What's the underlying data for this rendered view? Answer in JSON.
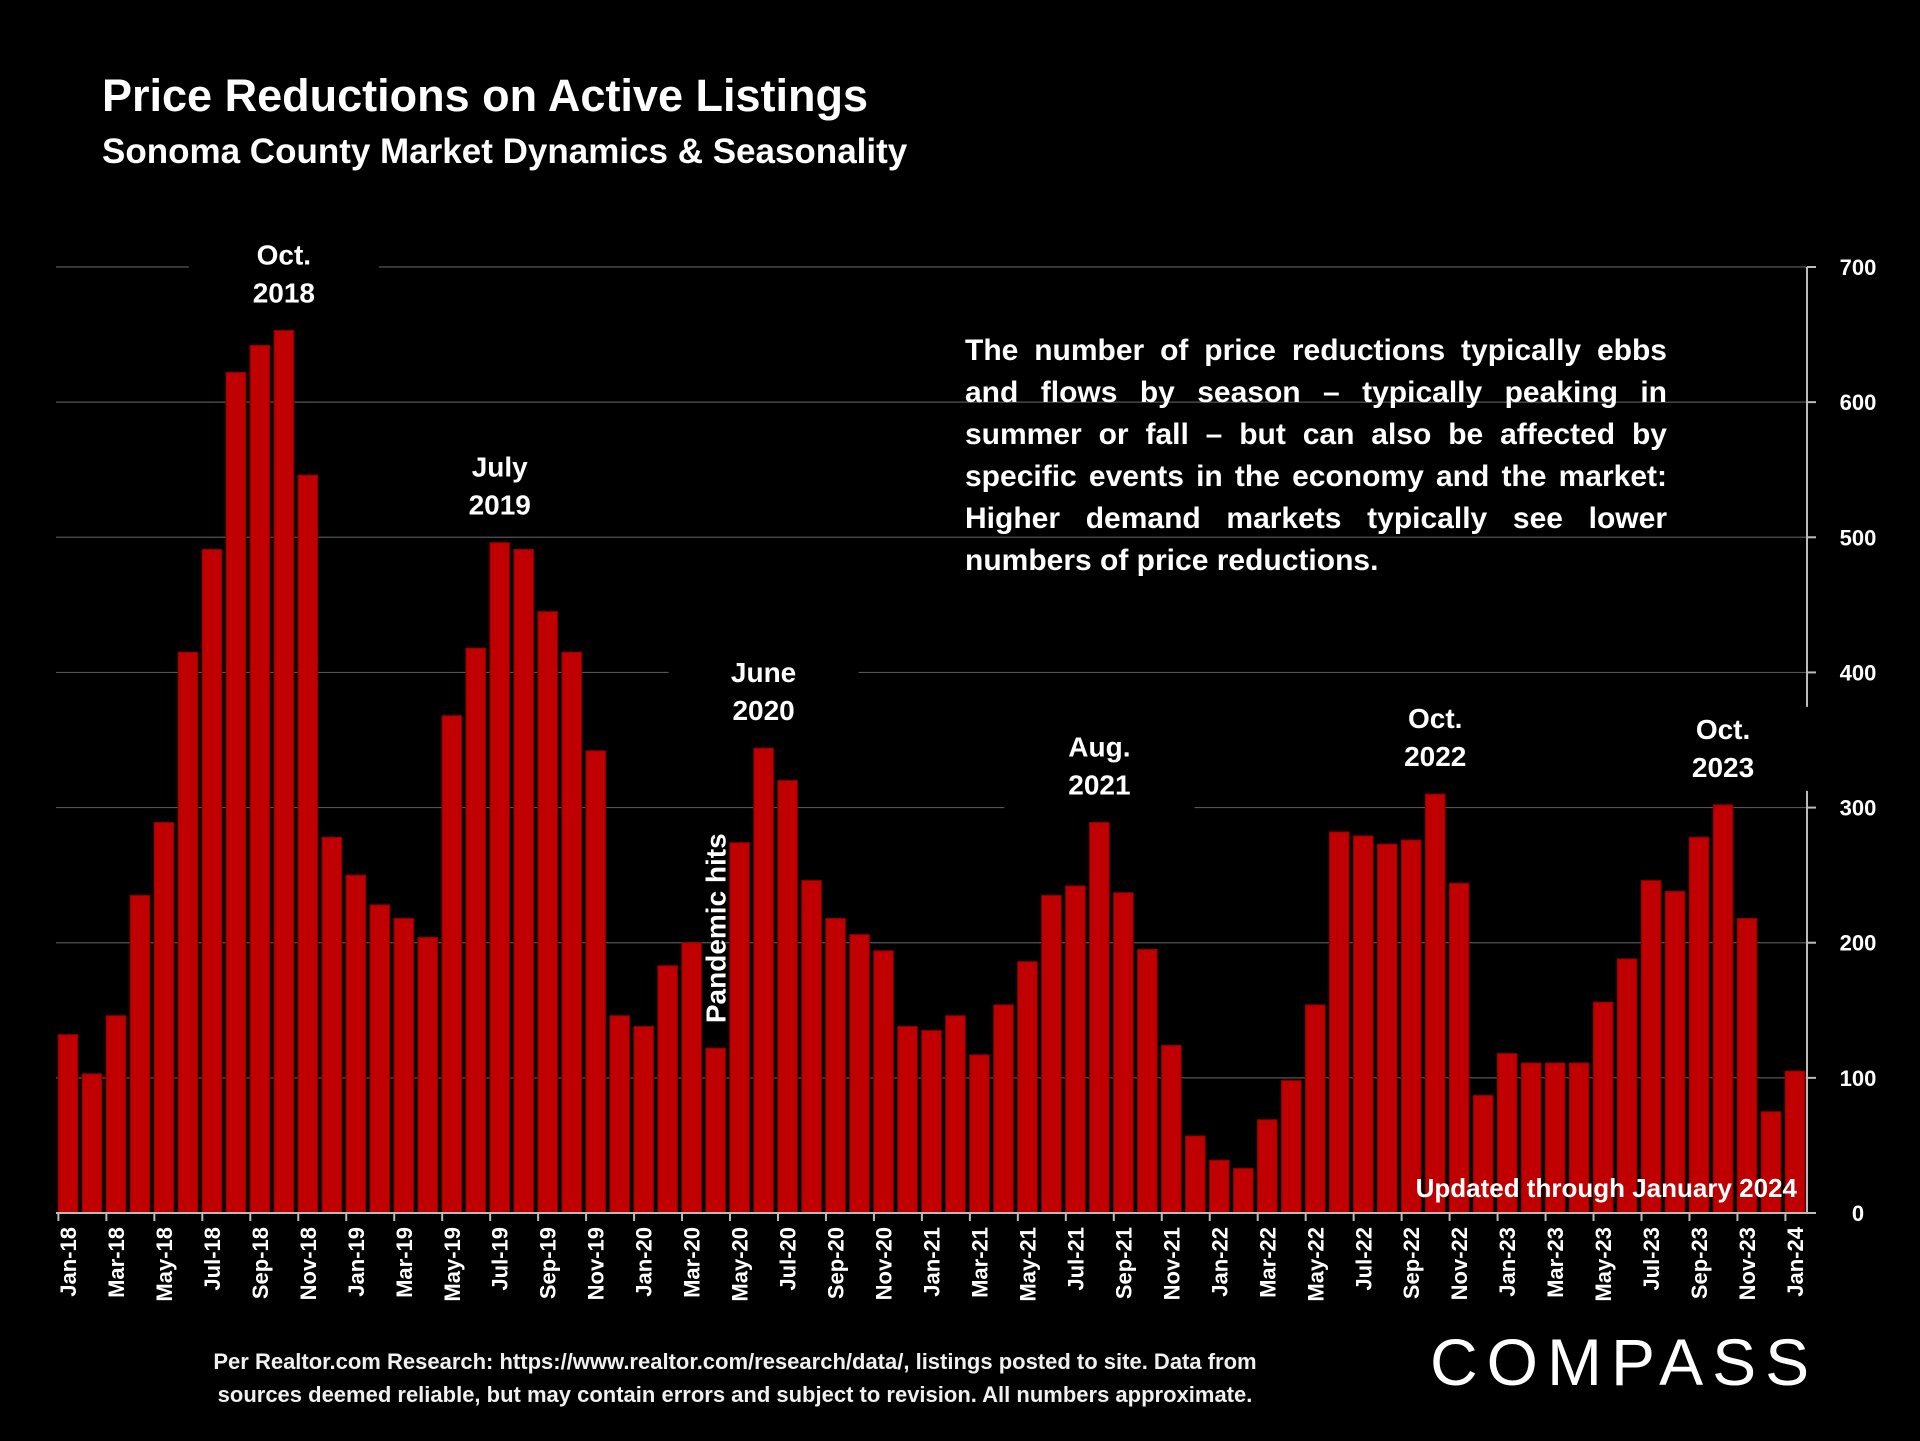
{
  "header": {
    "title": "Price Reductions on Active Listings",
    "subtitle": "Sonoma County Market Dynamics & Seasonality"
  },
  "note": "The number of price reductions typically ebbs and flows by season – typically peaking in summer or fall – but can also be affected by specific events in the economy and the market: Higher demand markets typically see lower numbers of price reductions.",
  "footer": {
    "source_line1": "Per Realtor.com Research:  https://www.realtor.com/research/data/, listings posted to site. Data from",
    "source_line2": "sources deemed reliable, but may contain errors and subject to revision. All numbers approximate.",
    "logo": "COMPASS"
  },
  "colors": {
    "bar": "#c00000",
    "background": "#000000",
    "grid": "#555555"
  },
  "chart_data": {
    "type": "bar",
    "title": "Price Reductions on Active Listings",
    "subtitle": "Sonoma County Market Dynamics & Seasonality",
    "xlabel": "",
    "ylabel": "",
    "ylim": [
      0,
      700
    ],
    "yticks": [
      0,
      100,
      200,
      300,
      400,
      500,
      600,
      700
    ],
    "y_axis_position": "right",
    "grid": true,
    "categories": [
      "Jan-18",
      "Feb-18",
      "Mar-18",
      "Apr-18",
      "May-18",
      "Jun-18",
      "Jul-18",
      "Aug-18",
      "Sep-18",
      "Oct-18",
      "Nov-18",
      "Dec-18",
      "Jan-19",
      "Feb-19",
      "Mar-19",
      "Apr-19",
      "May-19",
      "Jun-19",
      "Jul-19",
      "Aug-19",
      "Sep-19",
      "Oct-19",
      "Nov-19",
      "Dec-19",
      "Jan-20",
      "Feb-20",
      "Mar-20",
      "Apr-20",
      "May-20",
      "Jun-20",
      "Jul-20",
      "Aug-20",
      "Sep-20",
      "Oct-20",
      "Nov-20",
      "Dec-20",
      "Jan-21",
      "Feb-21",
      "Mar-21",
      "Apr-21",
      "May-21",
      "Jun-21",
      "Jul-21",
      "Aug-21",
      "Sep-21",
      "Oct-21",
      "Nov-21",
      "Dec-21",
      "Jan-22",
      "Feb-22",
      "Mar-22",
      "Apr-22",
      "May-22",
      "Jun-22",
      "Jul-22",
      "Aug-22",
      "Sep-22",
      "Oct-22",
      "Nov-22",
      "Dec-22",
      "Jan-23",
      "Feb-23",
      "Mar-23",
      "Apr-23",
      "May-23",
      "Jun-23",
      "Jul-23",
      "Aug-23",
      "Sep-23",
      "Oct-23",
      "Nov-23",
      "Dec-23",
      "Jan-24"
    ],
    "values": [
      132,
      103,
      146,
      235,
      289,
      415,
      491,
      622,
      642,
      653,
      546,
      278,
      250,
      228,
      218,
      204,
      368,
      418,
      496,
      491,
      445,
      415,
      342,
      146,
      138,
      183,
      200,
      122,
      274,
      344,
      320,
      246,
      218,
      206,
      194,
      138,
      135,
      146,
      117,
      154,
      186,
      235,
      242,
      289,
      237,
      195,
      124,
      57,
      39,
      33,
      69,
      98,
      154,
      282,
      279,
      273,
      276,
      310,
      244,
      87,
      118,
      111,
      111,
      111,
      156,
      188,
      246,
      238,
      278,
      302,
      218,
      75,
      105
    ],
    "tick_labels": [
      "Jan-18",
      "Mar-18",
      "May-18",
      "Jul-18",
      "Sep-18",
      "Nov-18",
      "Jan-19",
      "Mar-19",
      "May-19",
      "Jul-19",
      "Sep-19",
      "Nov-19",
      "Jan-20",
      "Mar-20",
      "May-20",
      "Jul-20",
      "Sep-20",
      "Nov-20",
      "Jan-21",
      "Mar-21",
      "May-21",
      "Jul-21",
      "Sep-21",
      "Nov-21",
      "Jan-22",
      "Mar-22",
      "May-22",
      "Jul-22",
      "Sep-22",
      "Nov-22",
      "Jan-23",
      "Mar-23",
      "May-23",
      "Jul-23",
      "Sep-23",
      "Nov-23",
      "Jan-24"
    ],
    "annotations": [
      {
        "category": "Oct-18",
        "lines": [
          "Oct.",
          "2018"
        ]
      },
      {
        "category": "Jul-19",
        "lines": [
          "July",
          "2019"
        ]
      },
      {
        "category": "Jun-20",
        "lines": [
          "June",
          "2020"
        ]
      },
      {
        "category": "Aug-21",
        "lines": [
          "Aug.",
          "2021"
        ]
      },
      {
        "category": "Oct-22",
        "lines": [
          "Oct.",
          "2022"
        ]
      },
      {
        "category": "Oct-23",
        "lines": [
          "Oct.",
          "2023"
        ]
      }
    ],
    "event_label": {
      "category": "Apr-20",
      "text": "Pandemic hits"
    },
    "updated_label": "Updated through January 2024"
  }
}
